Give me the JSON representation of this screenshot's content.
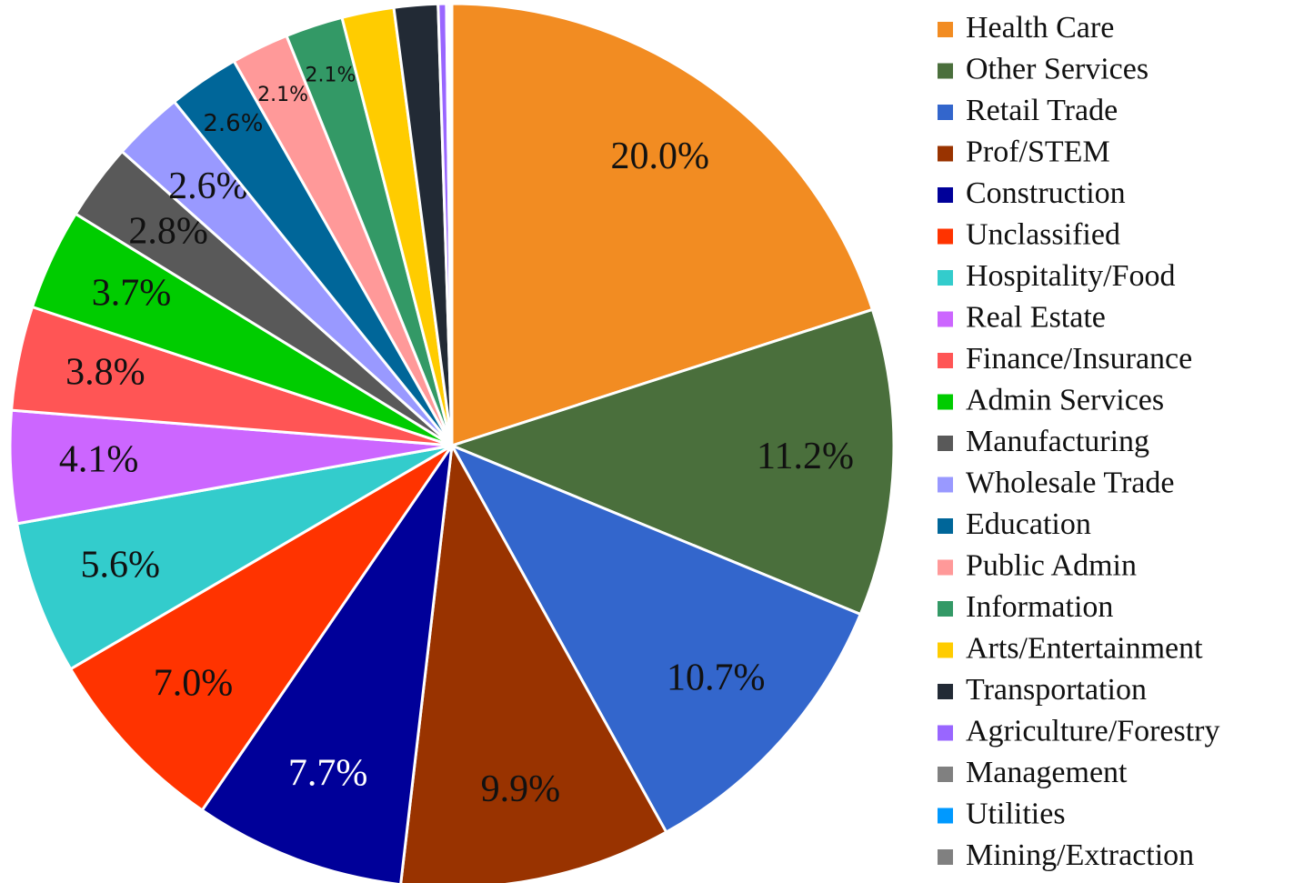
{
  "chart_data": {
    "type": "pie",
    "categories": [
      "Health Care",
      "Other Services",
      "Retail Trade",
      "Prof/STEM",
      "Construction",
      "Unclassified",
      "Hospitality/Food",
      "Real Estate",
      "Finance/Insurance",
      "Admin Services",
      "Manufacturing",
      "Wholesale Trade",
      "Education",
      "Public Admin",
      "Information",
      "Arts/Entertainment",
      "Transportation",
      "Agriculture/Forestry",
      "Management",
      "Utilities",
      "Mining/Extraction"
    ],
    "values": [
      20.0,
      11.2,
      10.7,
      9.9,
      7.7,
      7.0,
      5.6,
      4.1,
      3.8,
      3.7,
      2.8,
      2.6,
      2.6,
      2.1,
      2.1,
      1.9,
      1.6,
      0.3,
      0.1,
      0.05,
      0.05
    ],
    "value_labels": [
      "20.0%",
      "11.2%",
      "10.7%",
      "9.9%",
      "7.7%",
      "7.0%",
      "5.6%",
      "4.1%",
      "3.8%",
      "3.7%",
      "2.8%",
      "2.6%",
      "2.6%",
      "2.1%",
      "2.1%",
      null,
      null,
      null,
      null,
      null,
      null
    ],
    "colors": [
      "#f28c22",
      "#4a6f3c",
      "#3366cc",
      "#993300",
      "#000099",
      "#ff3300",
      "#33cccc",
      "#cc66ff",
      "#ff5555",
      "#00cc00",
      "#595959",
      "#9999ff",
      "#006699",
      "#ff9999",
      "#339966",
      "#ffcc00",
      "#222a35",
      "#9966ff",
      "#808080",
      "#0099ff",
      "#808080"
    ],
    "legend": "right"
  }
}
